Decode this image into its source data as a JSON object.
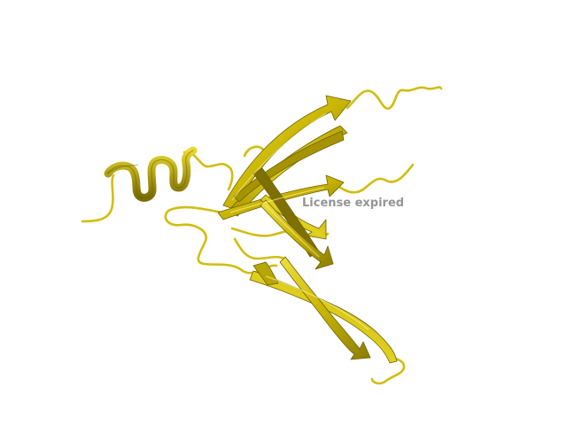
{
  "watermark_text": "License expired",
  "colors": {
    "ribbon": "#c8b400",
    "ribbon_light": "#e6d400",
    "ribbon_dark": "#6e6200",
    "coil": "#d2bd10",
    "background": "#ffffff",
    "watermark": "#8a8a8a"
  }
}
